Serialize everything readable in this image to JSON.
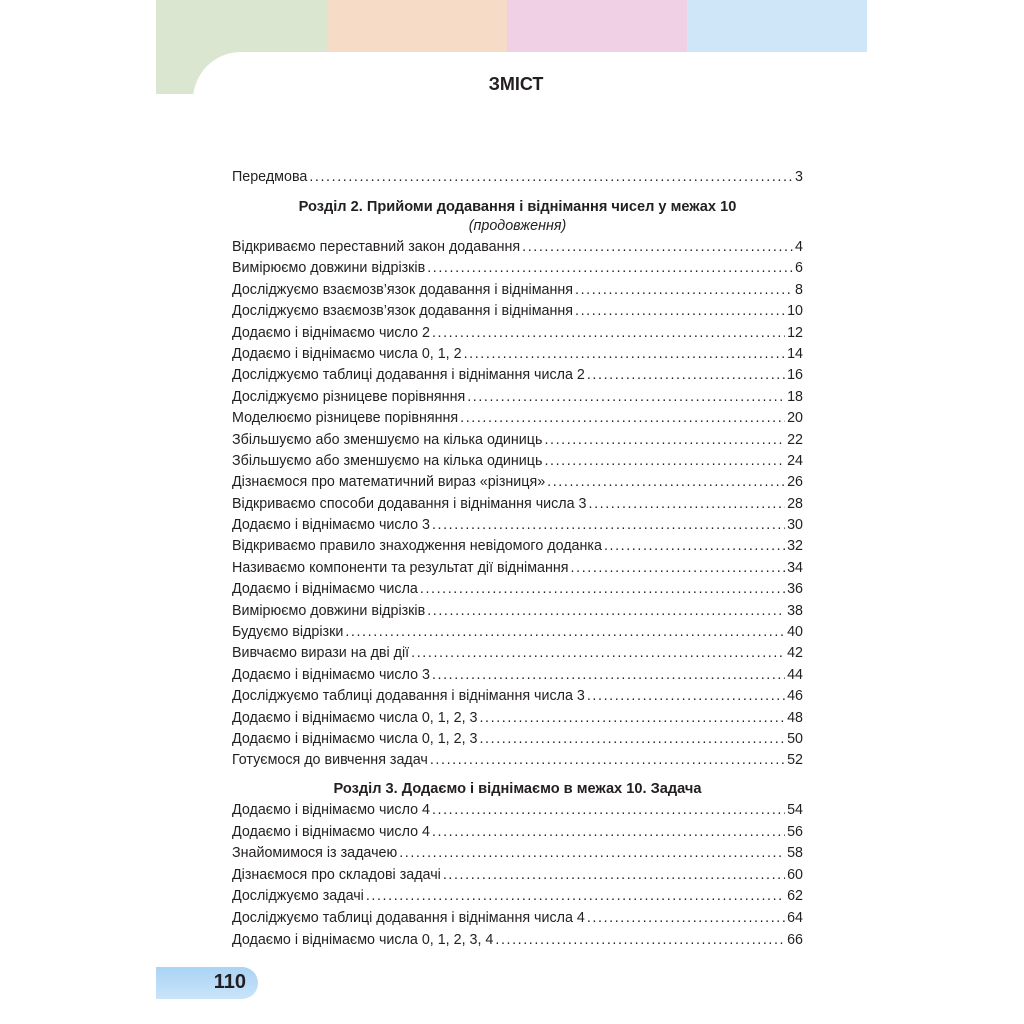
{
  "header": {
    "title": "ЗМІСТ",
    "colors": [
      "#dbe6d0",
      "#f6dcc6",
      "#f0d0e4",
      "#cfe6f8"
    ]
  },
  "preface": {
    "label": "Передмова",
    "page": "3"
  },
  "section2": {
    "title": "Розділ 2. Прийоми додавання і віднімання чисел у межах 10",
    "subtitle": "(продовження)",
    "items": [
      {
        "label": "Відкриваємо переставний закон додавання",
        "page": "4"
      },
      {
        "label": "Вимірюємо довжини відрізків",
        "page": "6"
      },
      {
        "label": "Досліджуємо взаємозв’язок додавання і віднімання",
        "page": "8"
      },
      {
        "label": "Досліджуємо взаємозв’язок  додавання і віднімання",
        "page": "10"
      },
      {
        "label": "Додаємо і віднімаємо число 2",
        "page": "12"
      },
      {
        "label": "Додаємо і віднімаємо числа 0, 1, 2",
        "page": "14"
      },
      {
        "label": "Досліджуємо таблиці додавання і віднімання числа 2",
        "page": "16"
      },
      {
        "label": "Досліджуємо різницеве порівняння",
        "page": "18"
      },
      {
        "label": "Моделюємо різницеве порівняння",
        "page": "20"
      },
      {
        "label": "Збільшуємо або зменшуємо на кілька одиниць",
        "page": "22"
      },
      {
        "label": "Збільшуємо або зменшуємо на кілька одиниць",
        "page": "24"
      },
      {
        "label": "Дізнаємося про математичний вираз «різниця»",
        "page": "26"
      },
      {
        "label": "Відкриваємо способи додавання і віднімання числа 3",
        "page": "28"
      },
      {
        "label": "Додаємо і віднімаємо число 3",
        "page": "30"
      },
      {
        "label": "Відкриваємо правило знаходження невідомого доданка",
        "page": "32"
      },
      {
        "label": "Називаємо компоненти та результат дії віднімання",
        "page": "34"
      },
      {
        "label": "Додаємо і віднімаємо числа",
        "page": "36"
      },
      {
        "label": "Вимірюємо довжини відрізків",
        "page": "38"
      },
      {
        "label": "Будуємо відрізки",
        "page": "40"
      },
      {
        "label": "Вивчаємо вирази на дві дії",
        "page": "42"
      },
      {
        "label": "Додаємо і віднімаємо число 3",
        "page": "44"
      },
      {
        "label": "Досліджуємо таблиці додавання і віднімання числа 3",
        "page": "46"
      },
      {
        "label": "Додаємо і віднімаємо числа 0, 1, 2, 3",
        "page": "48"
      },
      {
        "label": "Додаємо і віднімаємо числа 0, 1, 2, 3",
        "page": "50"
      },
      {
        "label": "Готуємося до вивчення задач",
        "page": "52"
      }
    ]
  },
  "section3": {
    "title": "Розділ 3. Додаємо і віднімаємо в межах 10. Задача",
    "items": [
      {
        "label": "Додаємо і віднімаємо число 4",
        "page": "54"
      },
      {
        "label": "Додаємо і віднімаємо число 4",
        "page": "56"
      },
      {
        "label": "Знайомимося із задачею",
        "page": "58"
      },
      {
        "label": "Дізнаємося про складові задачі",
        "page": "60"
      },
      {
        "label": "Досліджуємо задачі",
        "page": "62"
      },
      {
        "label": "Досліджуємо таблиці додавання і віднімання числа 4",
        "page": "64"
      },
      {
        "label": "Додаємо і віднімаємо числа 0, 1, 2, 3, 4",
        "page": "66"
      }
    ]
  },
  "footer": {
    "page_number": "110"
  }
}
